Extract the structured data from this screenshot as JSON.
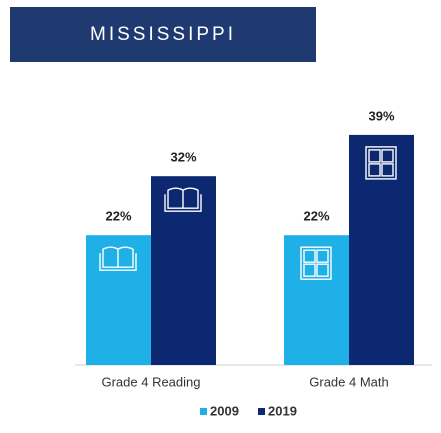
{
  "title": "MISSISSIPPI",
  "chart_data": {
    "type": "bar",
    "categories": [
      "Grade 4 Reading",
      "Grade 4 Math"
    ],
    "series": [
      {
        "name": "2009",
        "color": "#1fb0e8",
        "values": [
          22,
          22
        ],
        "value_labels": [
          "22%",
          "22%"
        ]
      },
      {
        "name": "2019",
        "color": "#0c2870",
        "values": [
          32,
          39
        ],
        "value_labels": [
          "32%",
          "39%"
        ]
      }
    ]
  }
}
